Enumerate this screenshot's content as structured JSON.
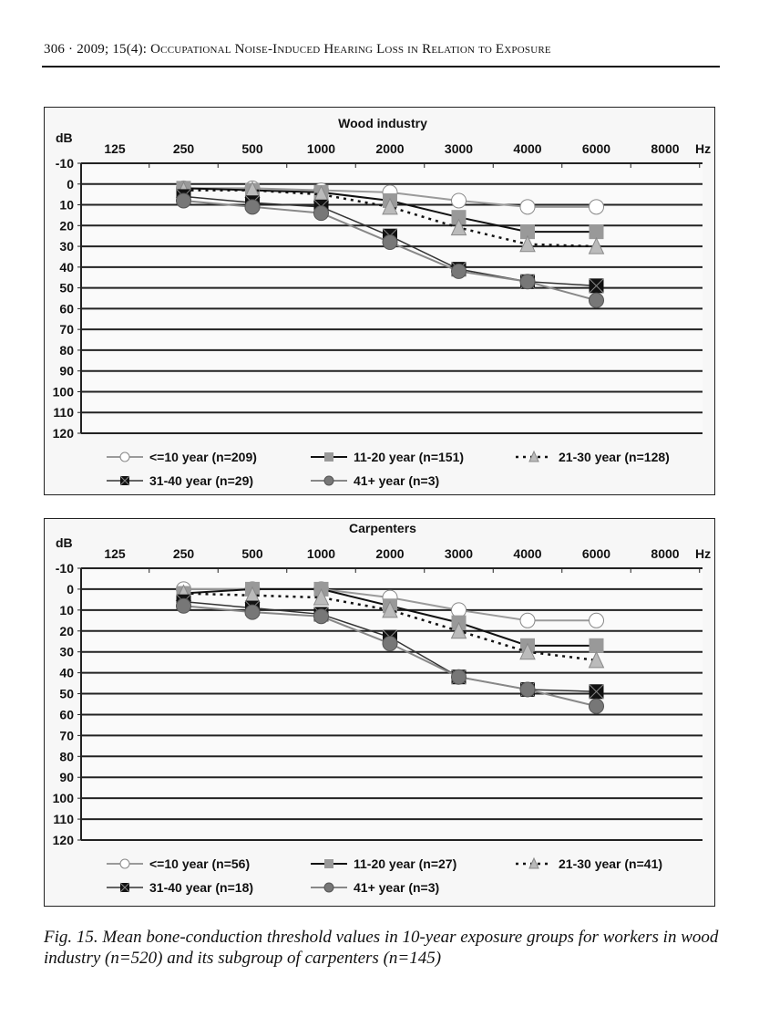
{
  "header": "306 · 2009; 15(4): Occupational Noise-Induced Hearing Loss in Relation to Exposure",
  "caption": "Fig. 15. Mean bone-conduction threshold values in 10-year exposure groups for workers in wood industry (n=520) and its subgroup of carpenters (n=145)",
  "chart_data": [
    {
      "type": "line",
      "title": "Wood industry",
      "ylabel": "dB",
      "xlabel": "Hz",
      "categories": [
        "125",
        "250",
        "500",
        "1000",
        "2000",
        "3000",
        "4000",
        "6000",
        "8000"
      ],
      "yticks": [
        "-10",
        "0",
        "10",
        "20",
        "30",
        "40",
        "50",
        "60",
        "70",
        "80",
        "90",
        "100",
        "110",
        "120"
      ],
      "ylim": [
        -10,
        120
      ],
      "y_inverted": true,
      "grid": true,
      "legend": "bottom",
      "series": [
        {
          "name": "<=10 year (n=209)",
          "values": [
            null,
            2,
            2,
            3,
            4,
            8,
            11,
            11,
            null
          ]
        },
        {
          "name": "11-20 year (n=151)",
          "values": [
            null,
            2,
            3,
            4,
            8,
            16,
            23,
            23,
            null
          ]
        },
        {
          "name": "21-30 year (n=128)",
          "values": [
            null,
            3,
            3,
            5,
            11,
            21,
            29,
            30,
            null
          ]
        },
        {
          "name": "31-40 year (n=29)",
          "values": [
            null,
            6,
            9,
            11,
            25,
            41,
            47,
            49,
            null
          ]
        },
        {
          "name": "41+ year (n=3)",
          "values": [
            null,
            8,
            11,
            14,
            28,
            42,
            47,
            56,
            null
          ]
        }
      ]
    },
    {
      "type": "line",
      "title": "Carpenters",
      "ylabel": "dB",
      "xlabel": "Hz",
      "categories": [
        "125",
        "250",
        "500",
        "1000",
        "2000",
        "3000",
        "4000",
        "6000",
        "8000"
      ],
      "yticks": [
        "-10",
        "0",
        "10",
        "20",
        "30",
        "40",
        "50",
        "60",
        "70",
        "80",
        "90",
        "100",
        "110",
        "120"
      ],
      "ylim": [
        -10,
        120
      ],
      "y_inverted": true,
      "grid": true,
      "legend": "bottom",
      "series": [
        {
          "name": "<=10 year (n=56)",
          "values": [
            null,
            0,
            0,
            0,
            4,
            10,
            15,
            15,
            null
          ]
        },
        {
          "name": "11-20 year (n=27)",
          "values": [
            null,
            2,
            0,
            0,
            8,
            16,
            27,
            27,
            null
          ]
        },
        {
          "name": "21-30 year (n=41)",
          "values": [
            null,
            2,
            3,
            4,
            10,
            20,
            30,
            34,
            null
          ]
        },
        {
          "name": "31-40 year (n=18)",
          "values": [
            null,
            6,
            9,
            12,
            23,
            42,
            48,
            49,
            null
          ]
        },
        {
          "name": "41+ year (n=3)",
          "values": [
            null,
            8,
            11,
            13,
            26,
            42,
            48,
            56,
            null
          ]
        }
      ]
    }
  ]
}
